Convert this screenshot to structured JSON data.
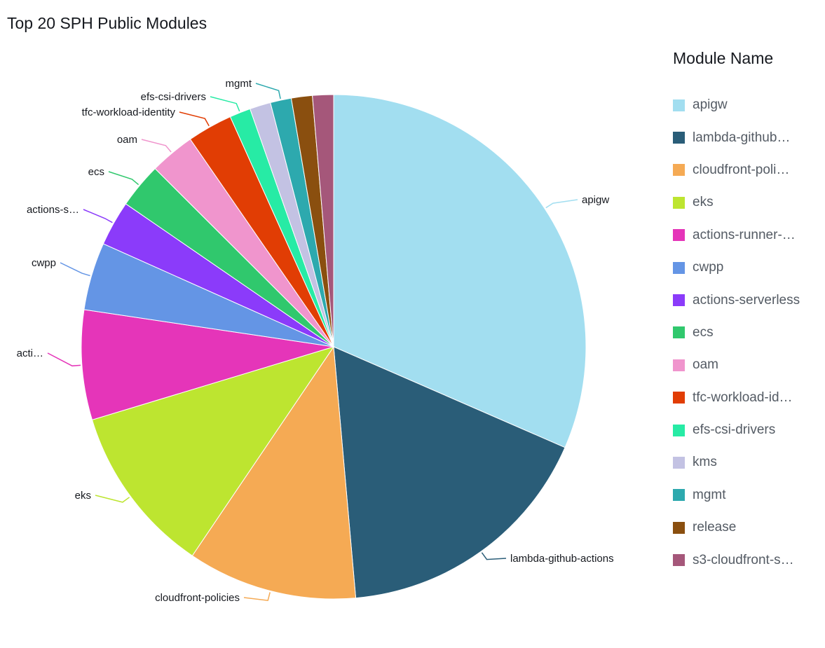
{
  "chart_data": {
    "type": "pie",
    "title": "Top 20 SPH Public Modules",
    "legend": {
      "title": "Module Name",
      "placement": "right"
    },
    "slices": [
      {
        "name": "apigw",
        "label": "apigw",
        "legend_label": "apigw",
        "value": 30.5,
        "color": "#a2def0"
      },
      {
        "name": "lambda-github-actions",
        "label": "lambda-github-actions",
        "legend_label": "lambda-github…",
        "value": 16.5,
        "color": "#2a5d78"
      },
      {
        "name": "cloudfront-policies",
        "label": "cloudfront-policies",
        "legend_label": "cloudfront-poli…",
        "value": 10.5,
        "color": "#f5aa54"
      },
      {
        "name": "eks",
        "label": "eks",
        "legend_label": "eks",
        "value": 10.5,
        "color": "#bde530"
      },
      {
        "name": "actions-runner-",
        "label": "acti…",
        "legend_label": "actions-runner-…",
        "value": 6.8,
        "color": "#e535b9"
      },
      {
        "name": "cwpp",
        "label": "cwpp",
        "legend_label": "cwpp",
        "value": 4.2,
        "color": "#6495e5"
      },
      {
        "name": "actions-serverless",
        "label": "actions-s…",
        "legend_label": "actions-serverless",
        "value": 2.8,
        "color": "#8b3bfa"
      },
      {
        "name": "ecs",
        "label": "ecs",
        "legend_label": "ecs",
        "value": 2.8,
        "color": "#30c86d"
      },
      {
        "name": "oam",
        "label": "oam",
        "legend_label": "oam",
        "value": 2.8,
        "color": "#f095cd"
      },
      {
        "name": "tfc-workload-identity",
        "label": "tfc-workload-identity",
        "legend_label": "tfc-workload-id…",
        "value": 2.8,
        "color": "#e13d04"
      },
      {
        "name": "efs-csi-drivers",
        "label": "efs-csi-drivers",
        "legend_label": "efs-csi-drivers",
        "value": 1.3,
        "color": "#27eba5"
      },
      {
        "name": "kms",
        "label": "",
        "legend_label": "kms",
        "value": 1.3,
        "color": "#c3c2e3"
      },
      {
        "name": "mgmt",
        "label": "mgmt",
        "legend_label": "mgmt",
        "value": 1.3,
        "color": "#2da9ae"
      },
      {
        "name": "release",
        "label": "",
        "legend_label": "release",
        "value": 1.3,
        "color": "#8a4f0f"
      },
      {
        "name": "s3-cloudfront-s",
        "label": "",
        "legend_label": "s3-cloudfront-s…",
        "value": 1.3,
        "color": "#a5577a"
      }
    ]
  }
}
